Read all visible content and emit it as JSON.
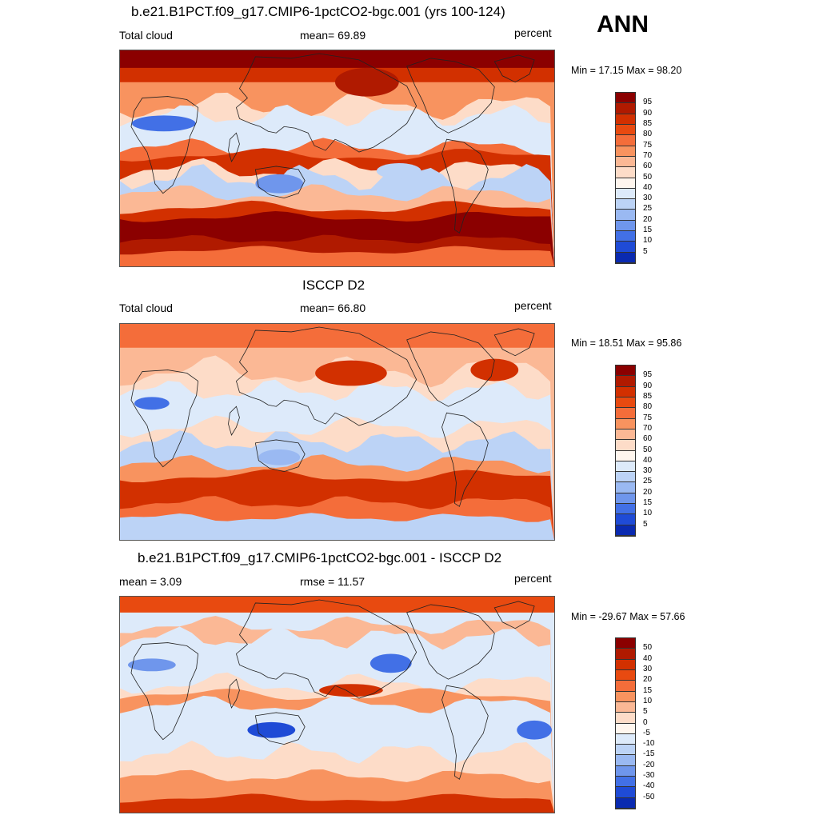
{
  "season": "ANN",
  "units": "percent",
  "panels": [
    {
      "title": "b.e21.B1PCT.f09_g17.CMIP6-1pctCO2-bgc.001 (yrs 100-124)",
      "left_label": "Total cloud",
      "center_label": "mean=  69.89",
      "right_label": "percent",
      "minmax": "Min =  17.15 Max =  98.20",
      "colorbar": {
        "ticks": [
          "95",
          "90",
          "85",
          "80",
          "75",
          "70",
          "60",
          "50",
          "40",
          "30",
          "25",
          "20",
          "15",
          "10",
          "5"
        ],
        "colors": [
          "#8B0000",
          "#B01A00",
          "#D23000",
          "#E84A10",
          "#F46D3A",
          "#F8935F",
          "#FBB895",
          "#FDDCC8",
          "#FFF6EE",
          "#DDEAFA",
          "#BCD3F6",
          "#9AB9F2",
          "#6F96EC",
          "#4270E6",
          "#1F4BD6",
          "#0A2AB0"
        ]
      },
      "map_style": "model"
    },
    {
      "title": "ISCCP D2",
      "left_label": "Total cloud",
      "center_label": "mean=  66.80",
      "right_label": "percent",
      "minmax": "Min =  18.51 Max =  95.86",
      "colorbar": {
        "ticks": [
          "95",
          "90",
          "85",
          "80",
          "75",
          "70",
          "60",
          "50",
          "40",
          "30",
          "25",
          "20",
          "15",
          "10",
          "5"
        ],
        "colors": [
          "#8B0000",
          "#B01A00",
          "#D23000",
          "#E84A10",
          "#F46D3A",
          "#F8935F",
          "#FBB895",
          "#FDDCC8",
          "#FFF6EE",
          "#DDEAFA",
          "#BCD3F6",
          "#9AB9F2",
          "#6F96EC",
          "#4270E6",
          "#1F4BD6",
          "#0A2AB0"
        ]
      },
      "map_style": "obs"
    },
    {
      "title": "b.e21.B1PCT.f09_g17.CMIP6-1pctCO2-bgc.001 - ISCCP D2",
      "left_label": "mean =   3.09",
      "center_label": "rmse =  11.57",
      "right_label": "percent",
      "minmax": "Min = -29.67 Max =  57.66",
      "colorbar": {
        "ticks": [
          "50",
          "40",
          "30",
          "20",
          "15",
          "10",
          "5",
          "0",
          "-5",
          "-10",
          "-15",
          "-20",
          "-30",
          "-40",
          "-50"
        ],
        "colors": [
          "#8B0000",
          "#B01A00",
          "#D23000",
          "#E84A10",
          "#F46D3A",
          "#F8935F",
          "#FBB895",
          "#FDDCC8",
          "#FFF6EE",
          "#DDEAFA",
          "#BCD3F6",
          "#9AB9F2",
          "#6F96EC",
          "#4270E6",
          "#1F4BD6",
          "#0A2AB0"
        ]
      },
      "map_style": "diff"
    }
  ]
}
